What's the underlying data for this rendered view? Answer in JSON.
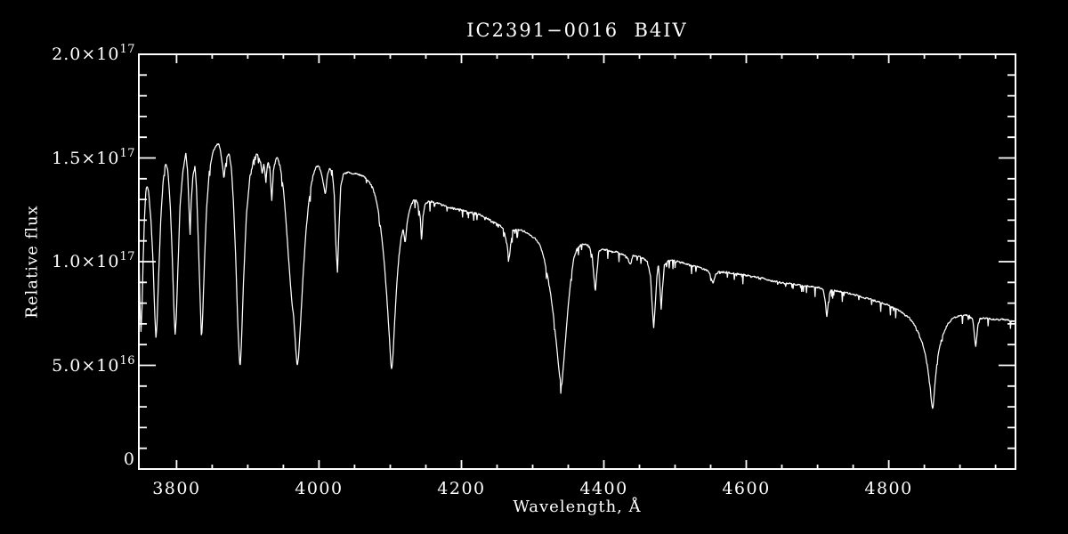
{
  "window": {
    "bg": "#000000",
    "fg": "#ffffff"
  },
  "chart_data": {
    "type": "line",
    "title": "IC2391−0016  B4IV",
    "xlabel": "Wavelength, Å",
    "ylabel": "Relative flux",
    "xlim": [
      3747,
      4978
    ],
    "ylim": [
      0,
      2e+17
    ],
    "y_unit_scale": 1e+17,
    "grid": false,
    "frame_color": "#ffffff",
    "line_color": "#ffffff",
    "x_major_ticks": [
      3800,
      4000,
      4200,
      4400,
      4600,
      4800
    ],
    "x_tick_labels": [
      "3800",
      "4000",
      "4200",
      "4400",
      "4600",
      "4800"
    ],
    "x_minor_step": 50,
    "y_major_ticks": [
      0,
      0.5,
      1.0,
      1.5,
      2.0
    ],
    "y_tick_labels": [
      {
        "value": 2.0,
        "mantissa": "2.0×10",
        "exp": "17"
      },
      {
        "value": 1.5,
        "mantissa": "1.5×10",
        "exp": "17"
      },
      {
        "value": 1.0,
        "mantissa": "1.0×10",
        "exp": "17"
      },
      {
        "value": 0.5,
        "mantissa": "5.0×10",
        "exp": "16"
      },
      {
        "value": 0.0,
        "mantissa": "0",
        "exp": ""
      }
    ],
    "y_minor_step": 0.1,
    "sample_step": 0.75,
    "noise": {
      "jitter": 0.0045,
      "spike_prob": 0.1,
      "spike_max": 0.042,
      "seed": 1337
    },
    "series": [
      {
        "name": "spectrum",
        "color": "#ffffff",
        "points": [
          [
            3747,
            1.08
          ],
          [
            3748.5,
            0.8
          ],
          [
            3750,
            0.66
          ],
          [
            3751.5,
            0.78
          ],
          [
            3753,
            1.0
          ],
          [
            3755,
            1.22
          ],
          [
            3757,
            1.35
          ],
          [
            3759,
            1.36
          ],
          [
            3761,
            1.33
          ],
          [
            3764,
            1.2
          ],
          [
            3767,
            1.0
          ],
          [
            3769,
            0.78
          ],
          [
            3771,
            0.63
          ],
          [
            3772.5,
            0.7
          ],
          [
            3775,
            0.95
          ],
          [
            3778,
            1.22
          ],
          [
            3781,
            1.38
          ],
          [
            3784,
            1.47
          ],
          [
            3786,
            1.47
          ],
          [
            3788,
            1.43
          ],
          [
            3791,
            1.28
          ],
          [
            3794,
            1.02
          ],
          [
            3796.5,
            0.75
          ],
          [
            3798,
            0.645
          ],
          [
            3799.5,
            0.72
          ],
          [
            3802,
            0.98
          ],
          [
            3805,
            1.28
          ],
          [
            3809,
            1.44
          ],
          [
            3813,
            1.52
          ],
          [
            3815.5,
            1.44
          ],
          [
            3817.5,
            1.25
          ],
          [
            3819,
            1.13
          ],
          [
            3820.5,
            1.28
          ],
          [
            3823,
            1.42
          ],
          [
            3826,
            1.46
          ],
          [
            3828,
            1.35
          ],
          [
            3831,
            1.05
          ],
          [
            3833.5,
            0.78
          ],
          [
            3835,
            0.62
          ],
          [
            3836.5,
            0.72
          ],
          [
            3839,
            0.98
          ],
          [
            3842,
            1.25
          ],
          [
            3846,
            1.44
          ],
          [
            3851,
            1.53
          ],
          [
            3856,
            1.56
          ],
          [
            3859,
            1.57
          ],
          [
            3862,
            1.53
          ],
          [
            3864.5,
            1.46
          ],
          [
            3866.5,
            1.4
          ],
          [
            3868.5,
            1.46
          ],
          [
            3871,
            1.51
          ],
          [
            3874,
            1.52
          ],
          [
            3877,
            1.45
          ],
          [
            3880,
            1.28
          ],
          [
            3883,
            1.02
          ],
          [
            3886,
            0.7
          ],
          [
            3888.5,
            0.51
          ],
          [
            3889.5,
            0.5
          ],
          [
            3891,
            0.6
          ],
          [
            3894,
            0.9
          ],
          [
            3898,
            1.22
          ],
          [
            3903,
            1.41
          ],
          [
            3908,
            1.49
          ],
          [
            3912,
            1.52
          ],
          [
            3915,
            1.51
          ],
          [
            3918,
            1.48
          ],
          [
            3920.5,
            1.42
          ],
          [
            3922.5,
            1.47
          ],
          [
            3925.5,
            1.39
          ],
          [
            3928,
            1.48
          ],
          [
            3931,
            1.46
          ],
          [
            3933.7,
            1.29
          ],
          [
            3936,
            1.44
          ],
          [
            3939,
            1.49
          ],
          [
            3941.5,
            1.5
          ],
          [
            3944.5,
            1.48
          ],
          [
            3947.5,
            1.42
          ],
          [
            3950.5,
            1.33
          ],
          [
            3954,
            1.18
          ],
          [
            3958,
            0.98
          ],
          [
            3961.5,
            0.82
          ],
          [
            3964.5,
            0.73
          ],
          [
            3967,
            0.6
          ],
          [
            3969,
            0.51
          ],
          [
            3970,
            0.5
          ],
          [
            3971.5,
            0.55
          ],
          [
            3974,
            0.7
          ],
          [
            3977.5,
            0.92
          ],
          [
            3981.5,
            1.14
          ],
          [
            3986,
            1.3
          ],
          [
            3991,
            1.41
          ],
          [
            3996,
            1.46
          ],
          [
            4000,
            1.46
          ],
          [
            4003.5,
            1.42
          ],
          [
            4006.5,
            1.375
          ],
          [
            4009,
            1.32
          ],
          [
            4011.5,
            1.41
          ],
          [
            4015,
            1.45
          ],
          [
            4018.5,
            1.44
          ],
          [
            4021.5,
            1.32
          ],
          [
            4023.5,
            1.1
          ],
          [
            4026,
            0.945
          ],
          [
            4028,
            1.15
          ],
          [
            4030.5,
            1.36
          ],
          [
            4034,
            1.42
          ],
          [
            4040,
            1.43
          ],
          [
            4048,
            1.425
          ],
          [
            4056,
            1.42
          ],
          [
            4063,
            1.41
          ],
          [
            4069,
            1.39
          ],
          [
            4075,
            1.36
          ],
          [
            4081,
            1.29
          ],
          [
            4086,
            1.18
          ],
          [
            4091,
            1.02
          ],
          [
            4095,
            0.84
          ],
          [
            4098.5,
            0.65
          ],
          [
            4101,
            0.5
          ],
          [
            4102,
            0.475
          ],
          [
            4103.5,
            0.53
          ],
          [
            4106,
            0.7
          ],
          [
            4109,
            0.88
          ],
          [
            4112,
            1.02
          ],
          [
            4115,
            1.11
          ],
          [
            4118,
            1.16
          ],
          [
            4121,
            1.085
          ],
          [
            4123.5,
            1.18
          ],
          [
            4127,
            1.25
          ],
          [
            4131,
            1.29
          ],
          [
            4135,
            1.3
          ],
          [
            4139,
            1.28
          ],
          [
            4142,
            1.22
          ],
          [
            4144,
            1.095
          ],
          [
            4146,
            1.22
          ],
          [
            4149,
            1.28
          ],
          [
            4154,
            1.29
          ],
          [
            4160,
            1.29
          ],
          [
            4168,
            1.28
          ],
          [
            4176,
            1.27
          ],
          [
            4184,
            1.26
          ],
          [
            4192,
            1.255
          ],
          [
            4200,
            1.25
          ],
          [
            4209,
            1.24
          ],
          [
            4218,
            1.235
          ],
          [
            4227,
            1.225
          ],
          [
            4236,
            1.21
          ],
          [
            4245,
            1.19
          ],
          [
            4253,
            1.175
          ],
          [
            4259,
            1.16
          ],
          [
            4263,
            1.1
          ],
          [
            4267,
            1.01
          ],
          [
            4269,
            1.08
          ],
          [
            4272,
            1.15
          ],
          [
            4278,
            1.155
          ],
          [
            4285,
            1.15
          ],
          [
            4292,
            1.14
          ],
          [
            4298,
            1.125
          ],
          [
            4304,
            1.11
          ],
          [
            4310,
            1.08
          ],
          [
            4315,
            1.03
          ],
          [
            4320,
            0.95
          ],
          [
            4325,
            0.85
          ],
          [
            4330,
            0.72
          ],
          [
            4334,
            0.58
          ],
          [
            4337.5,
            0.46
          ],
          [
            4340,
            0.4
          ],
          [
            4341,
            0.41
          ],
          [
            4343,
            0.49
          ],
          [
            4346,
            0.62
          ],
          [
            4350,
            0.79
          ],
          [
            4354,
            0.93
          ],
          [
            4358,
            1.02
          ],
          [
            4362,
            1.06
          ],
          [
            4367,
            1.08
          ],
          [
            4373,
            1.085
          ],
          [
            4379,
            1.075
          ],
          [
            4383.5,
            1.03
          ],
          [
            4386,
            0.93
          ],
          [
            4388,
            0.85
          ],
          [
            4390,
            0.94
          ],
          [
            4393,
            1.05
          ],
          [
            4398,
            1.06
          ],
          [
            4405,
            1.055
          ],
          [
            4412,
            1.05
          ],
          [
            4419,
            1.045
          ],
          [
            4426,
            1.035
          ],
          [
            4433,
            1.02
          ],
          [
            4437,
            0.985
          ],
          [
            4441,
            1.03
          ],
          [
            4448,
            1.025
          ],
          [
            4455,
            1.015
          ],
          [
            4461,
            1.0
          ],
          [
            4465.5,
            0.93
          ],
          [
            4468,
            0.78
          ],
          [
            4470,
            0.68
          ],
          [
            4472,
            0.78
          ],
          [
            4474.5,
            0.93
          ],
          [
            4476.5,
            0.99
          ],
          [
            4478.5,
            0.9
          ],
          [
            4480.5,
            0.765
          ],
          [
            4482.5,
            0.88
          ],
          [
            4485,
            0.985
          ],
          [
            4490,
            1.005
          ],
          [
            4497,
            1.005
          ],
          [
            4504,
            1.0
          ],
          [
            4511,
            0.995
          ],
          [
            4518,
            0.985
          ],
          [
            4525,
            0.98
          ],
          [
            4532,
            0.975
          ],
          [
            4539,
            0.965
          ],
          [
            4546,
            0.955
          ],
          [
            4550.5,
            0.93
          ],
          [
            4553.5,
            0.89
          ],
          [
            4556.5,
            0.935
          ],
          [
            4561,
            0.95
          ],
          [
            4568,
            0.95
          ],
          [
            4575,
            0.947
          ],
          [
            4583,
            0.943
          ],
          [
            4591,
            0.94
          ],
          [
            4599,
            0.935
          ],
          [
            4607,
            0.93
          ],
          [
            4615,
            0.925
          ],
          [
            4623,
            0.92
          ],
          [
            4631,
            0.91
          ],
          [
            4639,
            0.905
          ],
          [
            4647,
            0.9
          ],
          [
            4655,
            0.895
          ],
          [
            4663,
            0.893
          ],
          [
            4671,
            0.89
          ],
          [
            4679,
            0.885
          ],
          [
            4687,
            0.882
          ],
          [
            4695,
            0.878
          ],
          [
            4703,
            0.873
          ],
          [
            4708,
            0.868
          ],
          [
            4711,
            0.8
          ],
          [
            4713,
            0.73
          ],
          [
            4715,
            0.8
          ],
          [
            4718,
            0.862
          ],
          [
            4725,
            0.86
          ],
          [
            4733,
            0.855
          ],
          [
            4741,
            0.85
          ],
          [
            4749,
            0.843
          ],
          [
            4757,
            0.835
          ],
          [
            4765,
            0.827
          ],
          [
            4773,
            0.82
          ],
          [
            4781,
            0.812
          ],
          [
            4789,
            0.803
          ],
          [
            4797,
            0.793
          ],
          [
            4804,
            0.782
          ],
          [
            4811,
            0.77
          ],
          [
            4818,
            0.757
          ],
          [
            4825,
            0.74
          ],
          [
            4831,
            0.72
          ],
          [
            4837,
            0.69
          ],
          [
            4842,
            0.655
          ],
          [
            4847,
            0.61
          ],
          [
            4851,
            0.56
          ],
          [
            4855,
            0.48
          ],
          [
            4858,
            0.4
          ],
          [
            4860,
            0.32
          ],
          [
            4861.5,
            0.295
          ],
          [
            4863,
            0.33
          ],
          [
            4865,
            0.42
          ],
          [
            4868,
            0.52
          ],
          [
            4872,
            0.6
          ],
          [
            4877,
            0.655
          ],
          [
            4882,
            0.695
          ],
          [
            4888,
            0.72
          ],
          [
            4894,
            0.733
          ],
          [
            4901,
            0.74
          ],
          [
            4908,
            0.742
          ],
          [
            4914,
            0.74
          ],
          [
            4918,
            0.72
          ],
          [
            4920.5,
            0.64
          ],
          [
            4922,
            0.58
          ],
          [
            4923.5,
            0.63
          ],
          [
            4925.5,
            0.7
          ],
          [
            4928,
            0.725
          ],
          [
            4934,
            0.728
          ],
          [
            4940,
            0.725
          ],
          [
            4947,
            0.722
          ],
          [
            4954,
            0.72
          ],
          [
            4961,
            0.722
          ],
          [
            4968,
            0.718
          ],
          [
            4974,
            0.715
          ],
          [
            4978,
            0.712
          ]
        ]
      }
    ]
  }
}
